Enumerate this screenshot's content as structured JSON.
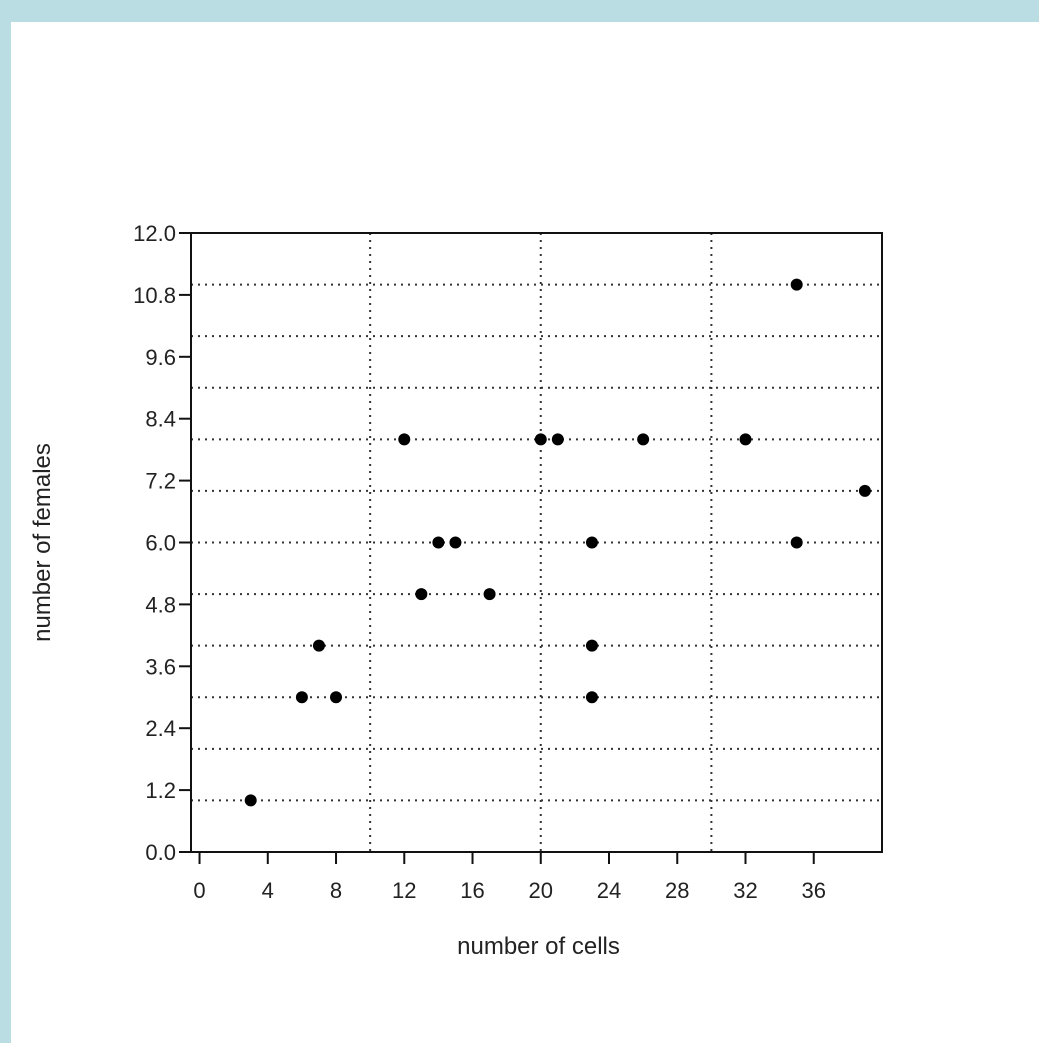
{
  "chart_data": {
    "type": "scatter",
    "title": "",
    "xlabel": "number of cells",
    "ylabel": "number of females",
    "xlim": [
      -0.5,
      40
    ],
    "ylim": [
      0,
      12
    ],
    "x_ticks": [
      0,
      4,
      8,
      12,
      16,
      20,
      24,
      28,
      32,
      36
    ],
    "x_tick_labels": [
      "0",
      "4",
      "8",
      "12",
      "16",
      "20",
      "24",
      "28",
      "32",
      "36"
    ],
    "y_ticks": [
      0,
      1.2,
      2.4,
      3.6,
      4.8,
      6.0,
      7.2,
      8.4,
      9.6,
      10.8,
      12.0
    ],
    "y_tick_labels": [
      "0.0",
      "1.2",
      "2.4",
      "3.6",
      "4.8",
      "6.0",
      "7.2",
      "8.4",
      "9.6",
      "10.8",
      "12.0"
    ],
    "h_gridlines": [
      1,
      2,
      3,
      4,
      5,
      6,
      7,
      8,
      9,
      10,
      11
    ],
    "v_gridlines": [
      10,
      20,
      30
    ],
    "grid": true,
    "grid_style": "dotted",
    "marker_color": "#000000",
    "points": [
      {
        "x": 3,
        "y": 1
      },
      {
        "x": 6,
        "y": 3
      },
      {
        "x": 7,
        "y": 4
      },
      {
        "x": 8,
        "y": 3
      },
      {
        "x": 12,
        "y": 8
      },
      {
        "x": 13,
        "y": 5
      },
      {
        "x": 14,
        "y": 6
      },
      {
        "x": 15,
        "y": 6
      },
      {
        "x": 17,
        "y": 5
      },
      {
        "x": 20,
        "y": 8
      },
      {
        "x": 21,
        "y": 8
      },
      {
        "x": 23,
        "y": 6
      },
      {
        "x": 23,
        "y": 4
      },
      {
        "x": 23,
        "y": 3
      },
      {
        "x": 26,
        "y": 8
      },
      {
        "x": 32,
        "y": 8
      },
      {
        "x": 35,
        "y": 11
      },
      {
        "x": 35,
        "y": 6
      },
      {
        "x": 39,
        "y": 7
      }
    ]
  }
}
